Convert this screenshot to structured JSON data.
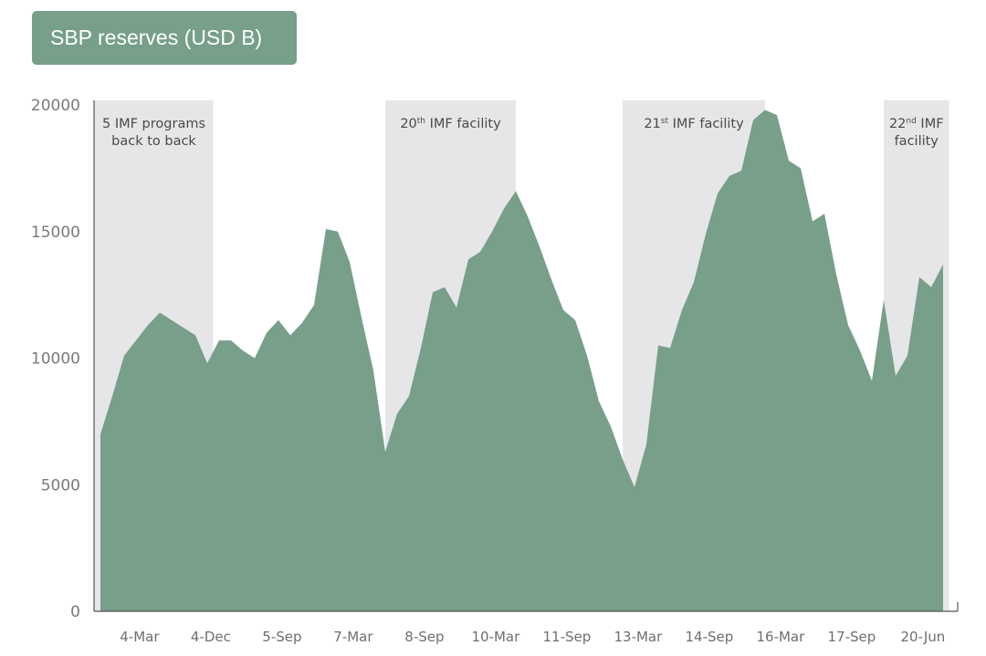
{
  "title": "SBP reserves (USD B)",
  "colors": {
    "area": "#779f8a",
    "band": "#e6e6e8",
    "title_bg": "#779f8a",
    "axis": "#555555"
  },
  "chart_data": {
    "type": "area",
    "title": "SBP reserves (USD B)",
    "xlabel": "",
    "ylabel": "",
    "ylim": [
      0,
      20000
    ],
    "yticks": [
      0,
      5000,
      10000,
      15000,
      20000
    ],
    "xtick_labels": [
      "4-Mar",
      "4-Dec",
      "5-Sep",
      "7-Mar",
      "8-Sep",
      "10-Mar",
      "11-Sep",
      "13-Mar",
      "14-Sep",
      "16-Mar",
      "17-Sep",
      "20-Jun"
    ],
    "x_range": [
      0,
      72
    ],
    "xtick_positions": [
      3.3,
      9.3,
      15.3,
      21.3,
      27.3,
      33.3,
      39.3,
      45.3,
      51.3,
      57.3,
      63.3,
      69.3
    ],
    "bands": [
      {
        "x0": -0.5,
        "x1": 9.5,
        "label_lines": [
          {
            "text": "5 IMF programs"
          },
          {
            "text": "back to back"
          }
        ]
      },
      {
        "x0": 24.0,
        "x1": 35.0,
        "label_lines": [
          {
            "num": "20",
            "sup": "th",
            "rest": "IMF facility"
          }
        ]
      },
      {
        "x0": 44.0,
        "x1": 56.0,
        "label_lines": [
          {
            "num": "21",
            "sup": "st",
            "rest": "IMF facility"
          }
        ]
      },
      {
        "x0": 66.0,
        "x1": 71.5,
        "label_lines": [
          {
            "num": "22",
            "sup": "nd",
            "rest": "IMF"
          },
          {
            "text": "facility"
          }
        ]
      }
    ],
    "series": [
      {
        "x": [
          0,
          1,
          2,
          3,
          4,
          5,
          6,
          7,
          8,
          9,
          10,
          11,
          12,
          13,
          14,
          15,
          16,
          17,
          18,
          19,
          20,
          21,
          22,
          23,
          24,
          25,
          26,
          27,
          28,
          29,
          30,
          31,
          32,
          33,
          34,
          35,
          36,
          37,
          38,
          39,
          40,
          41,
          42,
          43,
          44,
          45,
          46,
          47,
          48,
          49,
          50,
          51,
          52,
          53,
          54,
          55,
          56,
          57,
          58,
          59,
          60,
          61,
          62,
          63,
          64,
          65,
          66,
          67,
          68,
          69,
          70,
          71
        ],
        "values": [
          7000,
          8500,
          10100,
          10700,
          11300,
          11800,
          11500,
          11200,
          10900,
          9800,
          10700,
          10700,
          10300,
          10000,
          11000,
          11500,
          10900,
          11400,
          12100,
          15100,
          15000,
          13800,
          11600,
          9500,
          6300,
          7800,
          8500,
          10400,
          12600,
          12800,
          12000,
          13900,
          14200,
          15000,
          15900,
          16600,
          15600,
          14400,
          13100,
          11900,
          11500,
          10100,
          8300,
          7300,
          6000,
          4900,
          6600,
          10500,
          10400,
          11900,
          13000,
          14900,
          16500,
          17200,
          17400,
          19400,
          19800,
          19600,
          17800,
          17500,
          15400,
          15700,
          13300,
          11300,
          10300,
          9100,
          12300,
          9300,
          10100,
          13200,
          12800,
          13700
        ]
      }
    ]
  }
}
